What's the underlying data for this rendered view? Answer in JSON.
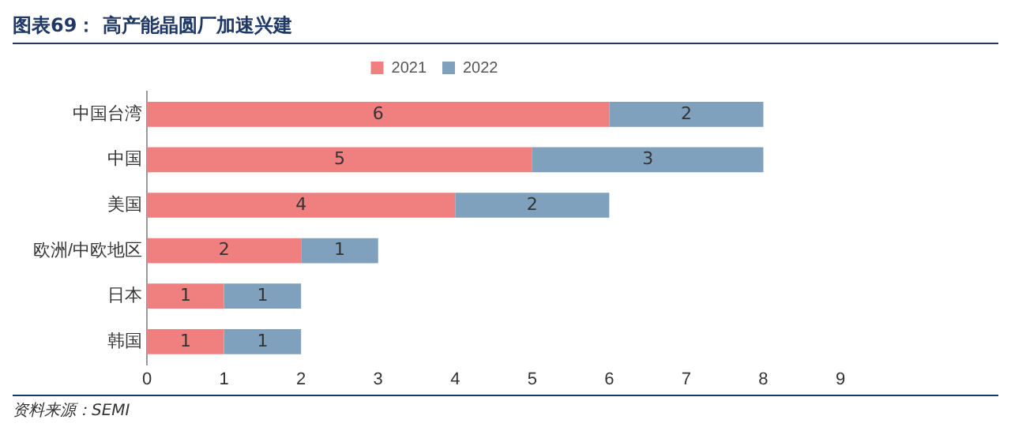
{
  "chart_data": {
    "type": "bar",
    "title": "图表69： 高产能晶圆厂加速兴建",
    "orientation": "horizontal",
    "stacked": true,
    "categories": [
      "中国台湾",
      "中国",
      "美国",
      "欧洲/中欧地区",
      "日本",
      "韩国"
    ],
    "series": [
      {
        "name": "2021",
        "color": "#f08080",
        "values": [
          6,
          5,
          4,
          2,
          1,
          1
        ]
      },
      {
        "name": "2022",
        "color": "#7fa1bd",
        "values": [
          2,
          3,
          2,
          1,
          1,
          1
        ]
      }
    ],
    "xlim": [
      0,
      9
    ],
    "xticks": [
      0,
      1,
      2,
      3,
      4,
      5,
      6,
      7,
      8,
      9
    ],
    "grid": false,
    "legend": "top",
    "data_labels": true,
    "annotations": [
      "资料来源：SEMI"
    ]
  }
}
